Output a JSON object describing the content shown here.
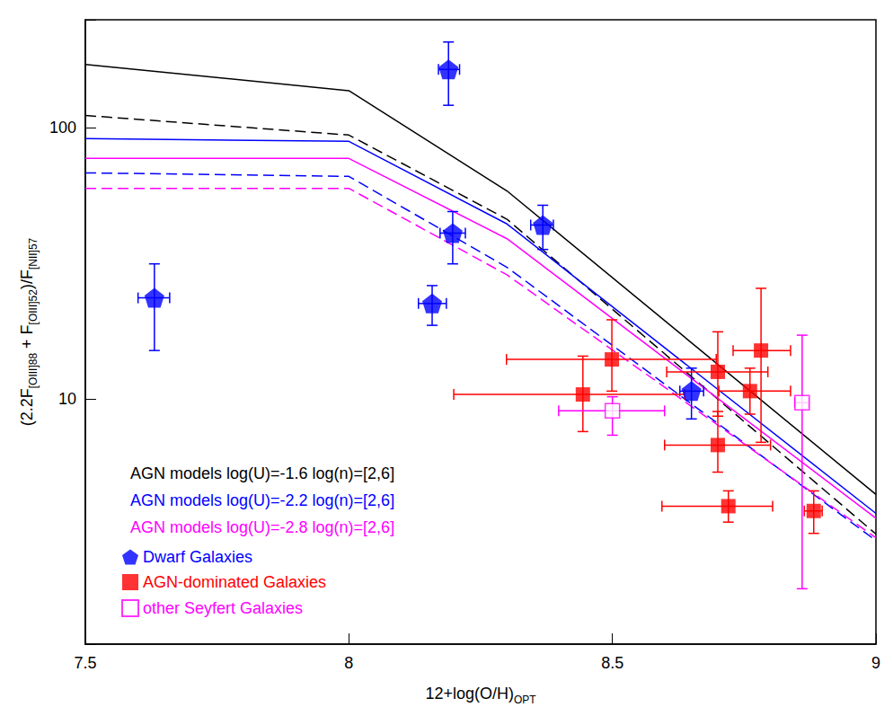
{
  "chart_data": {
    "type": "scatter",
    "x_label": "12+log(O/H)OPT",
    "y_label": "(2.2F[OIII]88 + F[OIII]52)/F[NII]57",
    "xlim": [
      7.5,
      9
    ],
    "xticks": [
      7.5,
      8,
      8.5,
      9
    ],
    "ylim": [
      1.25,
      250
    ],
    "yticks": [
      10,
      100
    ],
    "log": "y",
    "grid": false,
    "legend": "lower left",
    "series": [
      {
        "name": "AGN models log(U)=-1.6 log(n)=[2,6]",
        "type": "line",
        "color": "#000000",
        "x": [
          7.5,
          8,
          8.3,
          9
        ],
        "lines": [
          {
            "line_style": "solid",
            "values": [
              171,
              137,
              58.5,
              4.45
            ]
          },
          {
            "line_style": "dashed",
            "values": [
              111,
              94,
              46,
              3.18
            ]
          }
        ]
      },
      {
        "name": "AGN models log(U)=-2.2 log(n)=[2,6]",
        "type": "line",
        "color": "#0000ff",
        "x": [
          7.5,
          8,
          8.3,
          9
        ],
        "lines": [
          {
            "line_style": "solid",
            "values": [
              91.2,
              89.1,
              44.2,
              3.79
            ]
          },
          {
            "line_style": "dashed",
            "values": [
              68.2,
              66.2,
              30.6,
              3.01
            ]
          }
        ]
      },
      {
        "name": "AGN models log(U)=-2.8 log(n)=[2,6]",
        "type": "line",
        "color": "#ff00ff",
        "x": [
          7.5,
          8,
          8.3,
          9
        ],
        "lines": [
          {
            "line_style": "solid",
            "values": [
              77.1,
              77.1,
              39.0,
              3.64
            ]
          },
          {
            "line_style": "dashed",
            "values": [
              59.8,
              59.8,
              28.7,
              3.08
            ]
          }
        ]
      },
      {
        "name": "Dwarf Galaxies",
        "type": "scatter",
        "color": "#0000ff",
        "marker": "pentagon",
        "x": [
          7.631,
          8.189,
          8.197,
          8.158,
          8.368,
          8.65
        ],
        "values": [
          23.6,
          164,
          40.9,
          22.5,
          43.8,
          10.7
        ],
        "x_lower": [
          7.6,
          8.17,
          8.173,
          8.132,
          8.345,
          8.628
        ],
        "x_upper": [
          7.66,
          8.21,
          8.221,
          8.185,
          8.388,
          8.673
        ],
        "y_lower": [
          15.1,
          121,
          31.5,
          18.7,
          35.6,
          8.45
        ],
        "y_upper": [
          31.5,
          207,
          49.1,
          26.2,
          51.8,
          13.0
        ]
      },
      {
        "name": "AGN-dominated Galaxies",
        "type": "scatter",
        "color": "#ff0000",
        "marker": "square",
        "x": [
          8.444,
          8.499,
          8.7,
          8.761,
          8.782,
          8.7,
          8.72,
          8.882
        ],
        "values": [
          10.4,
          14.0,
          12.6,
          10.7,
          15.1,
          6.77,
          4.03,
          3.87
        ],
        "x_lower": [
          8.199,
          8.299,
          8.603,
          8.702,
          8.729,
          8.599,
          8.594,
          8.864
        ],
        "x_upper": [
          8.637,
          8.697,
          8.795,
          8.838,
          8.838,
          8.8,
          8.804,
          8.898
        ],
        "y_lower": [
          7.59,
          10.7,
          8.65,
          8.8,
          6.93,
          5.38,
          3.52,
          3.2
        ],
        "y_upper": [
          14.4,
          19.6,
          17.7,
          13.0,
          25.6,
          9.0,
          4.59,
          4.59
        ]
      },
      {
        "name": "other Seyfert Galaxies",
        "type": "scatter",
        "color": "#ff00ff",
        "marker": "open_square",
        "x": [
          8.5,
          8.86
        ],
        "values": [
          9.05,
          9.7
        ],
        "x_lower": [
          8.398,
          8.846
        ],
        "x_upper": [
          8.599,
          8.872
        ],
        "y_lower": [
          7.36,
          2.0
        ],
        "y_upper": [
          10.2,
          17.2
        ]
      }
    ]
  }
}
